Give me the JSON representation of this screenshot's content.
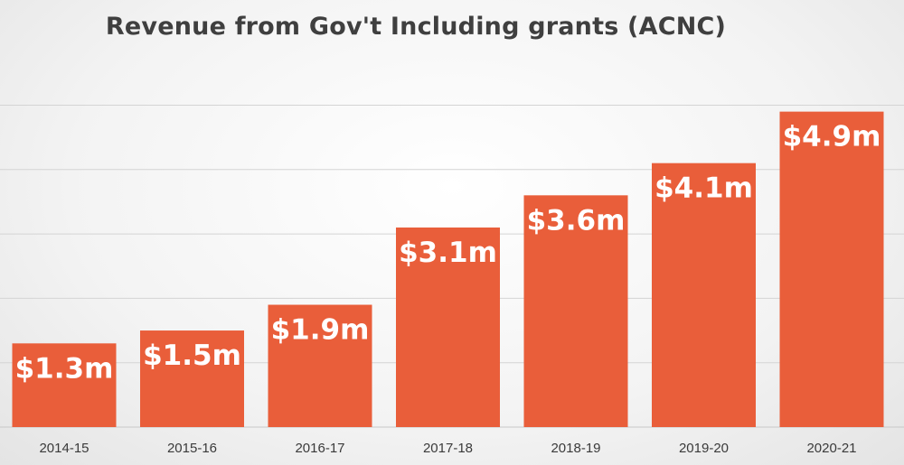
{
  "chart_data": {
    "type": "bar",
    "title": "Revenue from Gov't Including grants (ACNC)",
    "categories": [
      "2014-15",
      "2015-16",
      "2016-17",
      "2017-18",
      "2018-19",
      "2019-20",
      "2020-21"
    ],
    "values": [
      1.3,
      1.5,
      1.9,
      3.1,
      3.6,
      4.1,
      4.9
    ],
    "data_labels": [
      "$1.3m",
      "$1.5m",
      "$1.9m",
      "$3.1m",
      "$3.6m",
      "$4.1m",
      "$4.9m"
    ],
    "ylim": [
      0,
      5
    ],
    "grid": true,
    "legend": "none",
    "colors": {
      "bar": "#E95E3A",
      "grid": "#d4d4d4",
      "axis": "#c8c8c8",
      "title": "#3f3f3f",
      "data_label": "#ffffff"
    }
  }
}
